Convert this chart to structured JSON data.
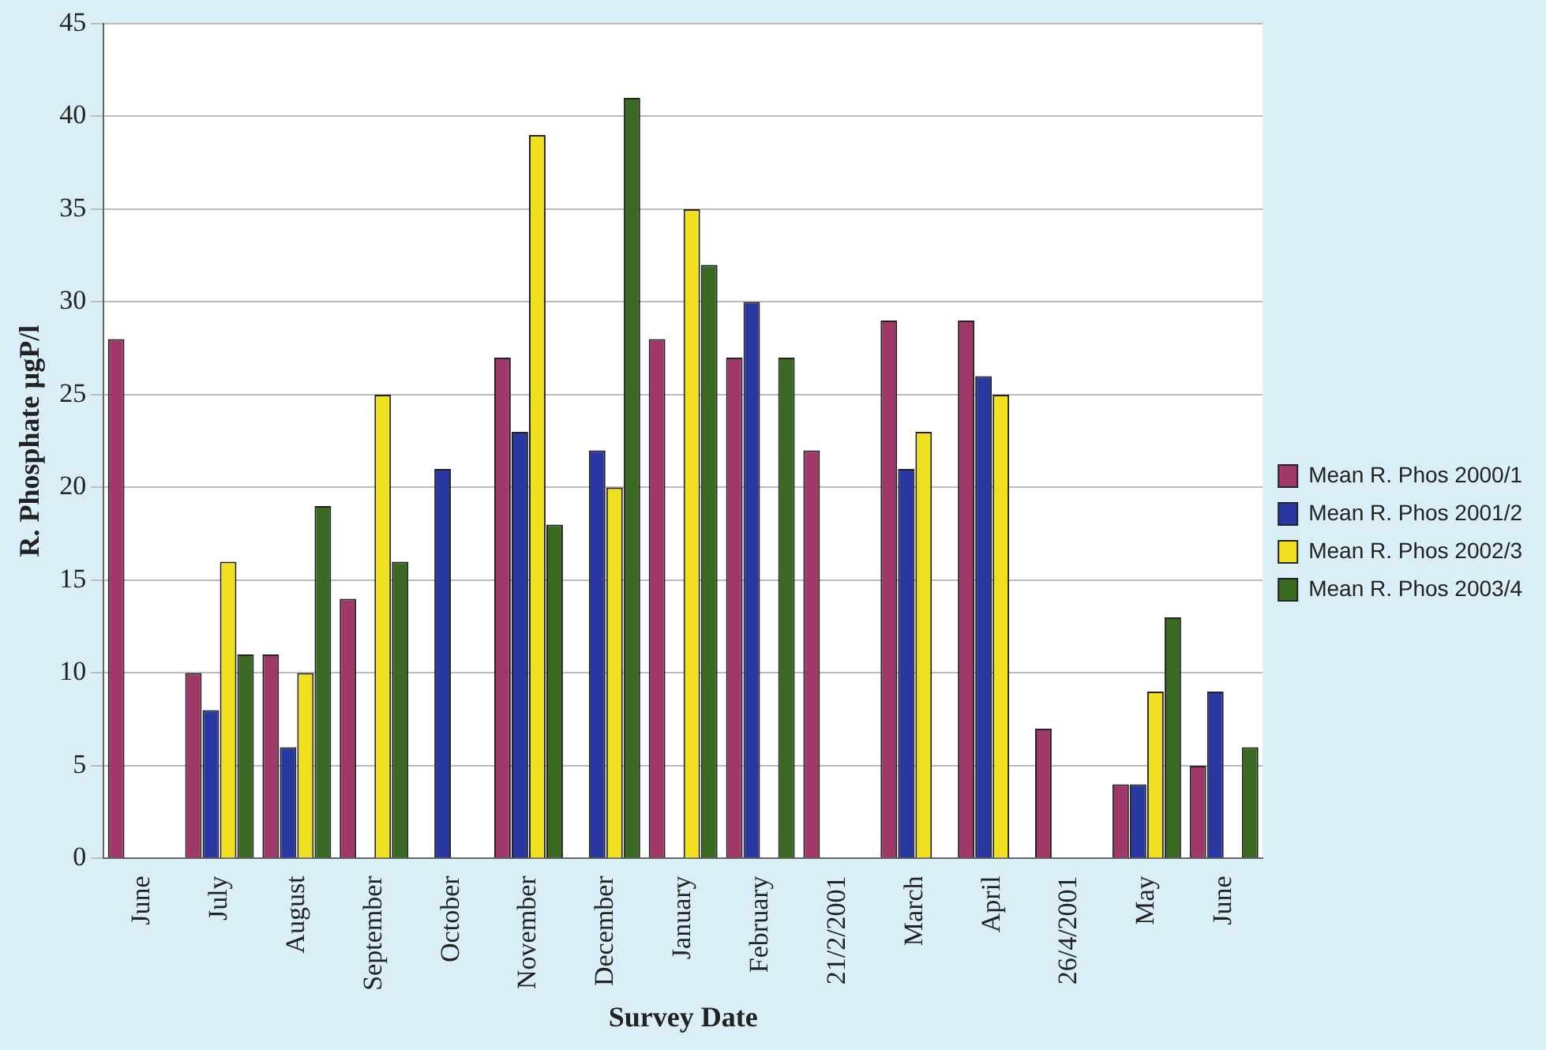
{
  "chart_data": {
    "type": "bar",
    "xlabel": "Survey Date",
    "ylabel": "R. Phosphate µgP/l",
    "categories": [
      "June",
      "July",
      "August",
      "September",
      "October",
      "November",
      "December",
      "January",
      "February",
      "21/2/2001",
      "March",
      "April",
      "26/4/2001",
      "May",
      "June"
    ],
    "series": [
      {
        "name": "Mean R. Phos 2000/1",
        "color": "#a0386a",
        "values": [
          28,
          10,
          11,
          14,
          null,
          27,
          null,
          28,
          27,
          22,
          29,
          29,
          7,
          4,
          5
        ]
      },
      {
        "name": "Mean R. Phos 2001/2",
        "color": "#2838a0",
        "values": [
          null,
          8,
          6,
          null,
          21,
          23,
          22,
          null,
          30,
          null,
          21,
          26,
          null,
          4,
          9
        ]
      },
      {
        "name": "Mean R. Phos 2002/3",
        "color": "#f0e020",
        "values": [
          null,
          16,
          10,
          25,
          null,
          39,
          20,
          35,
          null,
          null,
          23,
          25,
          null,
          9,
          null
        ]
      },
      {
        "name": "Mean R. Phos 2003/4",
        "color": "#3a6a22",
        "values": [
          null,
          11,
          19,
          16,
          null,
          18,
          41,
          32,
          27,
          null,
          null,
          null,
          null,
          13,
          6
        ]
      }
    ],
    "ylim": [
      0,
      45
    ],
    "yticks": [
      0,
      5,
      10,
      15,
      20,
      25,
      30,
      35,
      40,
      45
    ],
    "grid": "y",
    "legend": "right"
  }
}
